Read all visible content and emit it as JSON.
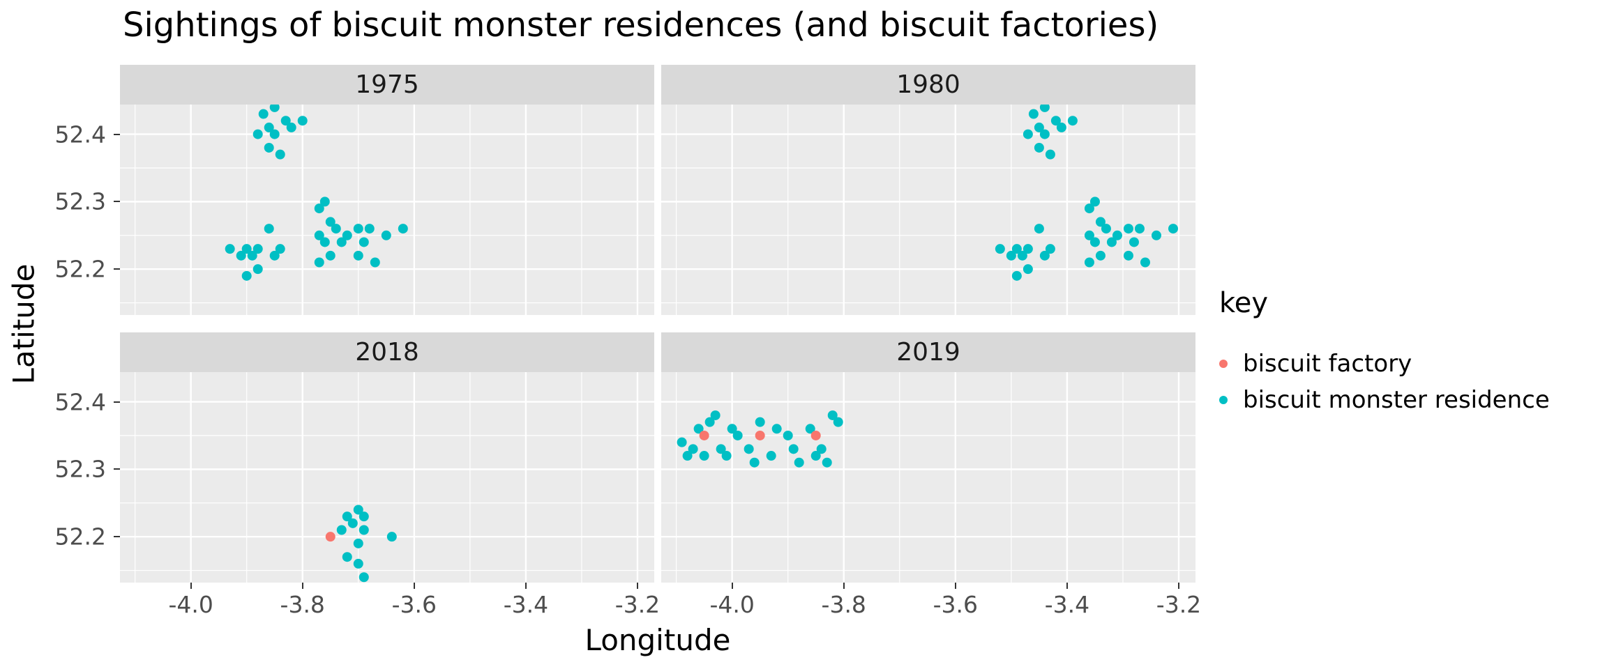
{
  "chart_data": {
    "type": "scatter",
    "title": "Sightings of biscuit monster residences (and biscuit factories)",
    "xlabel": "Longitude",
    "ylabel": "Latitude",
    "xlim": [
      -4.127,
      -3.17
    ],
    "ylim": [
      52.132,
      52.444
    ],
    "x_ticks": [
      -4.0,
      -3.8,
      -3.6,
      -3.4,
      -3.2
    ],
    "x_tick_labels": [
      "-4.0",
      "-3.8",
      "-3.6",
      "-3.4",
      "-3.2"
    ],
    "y_ticks": [
      52.2,
      52.3,
      52.4
    ],
    "y_tick_labels": [
      "52.2",
      "52.3",
      "52.4"
    ],
    "x_minor_ticks": [
      -4.1,
      -3.9,
      -3.7,
      -3.5,
      -3.3
    ],
    "y_minor_ticks": [
      52.15,
      52.25,
      52.35
    ],
    "grid": true,
    "legend_position": "right",
    "style": {
      "panel_bg": "#EBEBEB",
      "strip_bg": "#D9D9D9",
      "grid_color": "#FFFFFF",
      "tick_label_color": "#4D4D4D"
    },
    "legend": {
      "title": "key",
      "items": [
        {
          "label": "biscuit factory",
          "color": "#F8766D"
        },
        {
          "label": "biscuit monster residence",
          "color": "#00BFC4"
        }
      ]
    },
    "facets": [
      {
        "label": "1975",
        "series": [
          {
            "name": "biscuit monster residence",
            "color": "#00BFC4",
            "points": [
              [
                -3.87,
                52.43
              ],
              [
                -3.85,
                52.44
              ],
              [
                -3.83,
                52.42
              ],
              [
                -3.86,
                52.41
              ],
              [
                -3.88,
                52.4
              ],
              [
                -3.85,
                52.4
              ],
              [
                -3.82,
                52.41
              ],
              [
                -3.8,
                52.42
              ],
              [
                -3.86,
                52.38
              ],
              [
                -3.84,
                52.37
              ],
              [
                -3.93,
                52.23
              ],
              [
                -3.91,
                52.22
              ],
              [
                -3.9,
                52.23
              ],
              [
                -3.89,
                52.22
              ],
              [
                -3.88,
                52.23
              ],
              [
                -3.86,
                52.26
              ],
              [
                -3.85,
                52.22
              ],
              [
                -3.84,
                52.23
              ],
              [
                -3.9,
                52.19
              ],
              [
                -3.88,
                52.2
              ],
              [
                -3.77,
                52.29
              ],
              [
                -3.76,
                52.3
              ],
              [
                -3.75,
                52.27
              ],
              [
                -3.77,
                52.25
              ],
              [
                -3.76,
                52.24
              ],
              [
                -3.74,
                52.26
              ],
              [
                -3.73,
                52.24
              ],
              [
                -3.75,
                52.22
              ],
              [
                -3.77,
                52.21
              ],
              [
                -3.72,
                52.25
              ],
              [
                -3.7,
                52.26
              ],
              [
                -3.69,
                52.24
              ],
              [
                -3.68,
                52.26
              ],
              [
                -3.7,
                52.22
              ],
              [
                -3.67,
                52.21
              ],
              [
                -3.65,
                52.25
              ],
              [
                -3.62,
                52.26
              ]
            ]
          },
          {
            "name": "biscuit factory",
            "color": "#F8766D",
            "points": []
          }
        ]
      },
      {
        "label": "1980",
        "series": [
          {
            "name": "biscuit monster residence",
            "color": "#00BFC4",
            "points": [
              [
                -3.46,
                52.43
              ],
              [
                -3.44,
                52.44
              ],
              [
                -3.42,
                52.42
              ],
              [
                -3.45,
                52.41
              ],
              [
                -3.47,
                52.4
              ],
              [
                -3.44,
                52.4
              ],
              [
                -3.41,
                52.41
              ],
              [
                -3.39,
                52.42
              ],
              [
                -3.45,
                52.38
              ],
              [
                -3.43,
                52.37
              ],
              [
                -3.52,
                52.23
              ],
              [
                -3.5,
                52.22
              ],
              [
                -3.49,
                52.23
              ],
              [
                -3.48,
                52.22
              ],
              [
                -3.47,
                52.23
              ],
              [
                -3.45,
                52.26
              ],
              [
                -3.44,
                52.22
              ],
              [
                -3.43,
                52.23
              ],
              [
                -3.49,
                52.19
              ],
              [
                -3.47,
                52.2
              ],
              [
                -3.36,
                52.29
              ],
              [
                -3.35,
                52.3
              ],
              [
                -3.34,
                52.27
              ],
              [
                -3.36,
                52.25
              ],
              [
                -3.35,
                52.24
              ],
              [
                -3.33,
                52.26
              ],
              [
                -3.32,
                52.24
              ],
              [
                -3.34,
                52.22
              ],
              [
                -3.36,
                52.21
              ],
              [
                -3.31,
                52.25
              ],
              [
                -3.29,
                52.26
              ],
              [
                -3.28,
                52.24
              ],
              [
                -3.27,
                52.26
              ],
              [
                -3.29,
                52.22
              ],
              [
                -3.26,
                52.21
              ],
              [
                -3.24,
                52.25
              ],
              [
                -3.21,
                52.26
              ]
            ]
          },
          {
            "name": "biscuit factory",
            "color": "#F8766D",
            "points": []
          }
        ]
      },
      {
        "label": "2018",
        "series": [
          {
            "name": "biscuit monster residence",
            "color": "#00BFC4",
            "points": [
              [
                -3.72,
                52.23
              ],
              [
                -3.7,
                52.24
              ],
              [
                -3.69,
                52.23
              ],
              [
                -3.71,
                52.22
              ],
              [
                -3.73,
                52.21
              ],
              [
                -3.69,
                52.21
              ],
              [
                -3.7,
                52.19
              ],
              [
                -3.72,
                52.17
              ],
              [
                -3.7,
                52.16
              ],
              [
                -3.69,
                52.14
              ],
              [
                -3.64,
                52.2
              ]
            ]
          },
          {
            "name": "biscuit factory",
            "color": "#F8766D",
            "points": [
              [
                -3.75,
                52.2
              ]
            ]
          }
        ]
      },
      {
        "label": "2019",
        "series": [
          {
            "name": "biscuit monster residence",
            "color": "#00BFC4",
            "points": [
              [
                -4.09,
                52.34
              ],
              [
                -4.08,
                52.32
              ],
              [
                -4.07,
                52.33
              ],
              [
                -4.06,
                52.36
              ],
              [
                -4.05,
                52.32
              ],
              [
                -4.04,
                52.37
              ],
              [
                -4.03,
                52.38
              ],
              [
                -4.02,
                52.33
              ],
              [
                -4.01,
                52.32
              ],
              [
                -4.0,
                52.36
              ],
              [
                -3.99,
                52.35
              ],
              [
                -3.97,
                52.33
              ],
              [
                -3.96,
                52.31
              ],
              [
                -3.95,
                52.37
              ],
              [
                -3.93,
                52.32
              ],
              [
                -3.92,
                52.36
              ],
              [
                -3.9,
                52.35
              ],
              [
                -3.89,
                52.33
              ],
              [
                -3.88,
                52.31
              ],
              [
                -3.86,
                52.36
              ],
              [
                -3.85,
                52.32
              ],
              [
                -3.84,
                52.33
              ],
              [
                -3.83,
                52.31
              ],
              [
                -3.82,
                52.38
              ],
              [
                -3.81,
                52.37
              ]
            ]
          },
          {
            "name": "biscuit factory",
            "color": "#F8766D",
            "points": [
              [
                -4.05,
                52.35
              ],
              [
                -3.95,
                52.35
              ],
              [
                -3.85,
                52.35
              ]
            ]
          }
        ]
      }
    ]
  }
}
